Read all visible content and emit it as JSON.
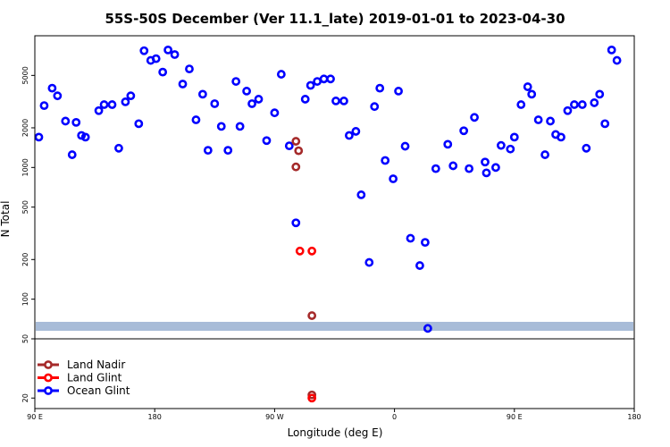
{
  "chart_data": {
    "type": "scatter",
    "title": "55S-50S December (Ver 11.1_late)   2019-01-01 to 2023-04-30",
    "xlabel": "Longitude (deg E)",
    "ylabel": "N Total",
    "y_scale": "log",
    "x_ticks": [
      {
        "value": 90,
        "label": "90 E"
      },
      {
        "value": 180,
        "label": "180"
      },
      {
        "value": 270,
        "label": "90 W"
      },
      {
        "value": 360,
        "label": "0"
      },
      {
        "value": 450,
        "label": "90 E"
      },
      {
        "value": 540,
        "label": "180"
      }
    ],
    "xlim": [
      90,
      540
    ],
    "upper_panel": {
      "ylim": [
        50,
        10000
      ],
      "y_ticks": [
        {
          "value": 50,
          "label": "50"
        },
        {
          "value": 100,
          "label": "100"
        },
        {
          "value": 200,
          "label": "200"
        },
        {
          "value": 500,
          "label": "500"
        },
        {
          "value": 1000,
          "label": "1000"
        },
        {
          "value": 2000,
          "label": "2000"
        },
        {
          "value": 5000,
          "label": "5000"
        }
      ]
    },
    "lower_panel": {
      "ylim": [
        17,
        50
      ],
      "y_ticks": [
        {
          "value": 20,
          "label": "20"
        }
      ]
    },
    "band_color": "#a8bcd8",
    "legend_position": "bottom-left",
    "series": [
      {
        "name": "Land Nadir",
        "color": "#a52a2a",
        "points": [
          [
            286,
            1580
          ],
          [
            286,
            1010
          ],
          [
            288,
            1340
          ],
          [
            298,
            75
          ],
          [
            298,
            21
          ]
        ]
      },
      {
        "name": "Land Glint",
        "color": "#ff0000",
        "points": [
          [
            289,
            232
          ],
          [
            298,
            232
          ],
          [
            298,
            20
          ]
        ]
      },
      {
        "name": "Ocean Glint",
        "color": "#0000ff",
        "points": [
          [
            93,
            1700
          ],
          [
            97,
            2950
          ],
          [
            103,
            4000
          ],
          [
            107,
            3500
          ],
          [
            113,
            2250
          ],
          [
            118,
            1250
          ],
          [
            121,
            2200
          ],
          [
            125,
            1750
          ],
          [
            128,
            1700
          ],
          [
            138,
            2700
          ],
          [
            142,
            3000
          ],
          [
            148,
            3000
          ],
          [
            153,
            1400
          ],
          [
            158,
            3150
          ],
          [
            162,
            3500
          ],
          [
            168,
            2150
          ],
          [
            172,
            7700
          ],
          [
            177,
            6500
          ],
          [
            181,
            6700
          ],
          [
            186,
            5300
          ],
          [
            190,
            7800
          ],
          [
            195,
            7200
          ],
          [
            201,
            4300
          ],
          [
            206,
            5600
          ],
          [
            211,
            2300
          ],
          [
            216,
            3600
          ],
          [
            220,
            1350
          ],
          [
            225,
            3050
          ],
          [
            230,
            2050
          ],
          [
            235,
            1350
          ],
          [
            241,
            4500
          ],
          [
            244,
            2050
          ],
          [
            249,
            3800
          ],
          [
            253,
            3050
          ],
          [
            258,
            3300
          ],
          [
            264,
            1600
          ],
          [
            270,
            2600
          ],
          [
            275,
            5100
          ],
          [
            281,
            1460
          ],
          [
            286,
            380
          ],
          [
            293,
            3300
          ],
          [
            297,
            4200
          ],
          [
            302,
            4500
          ],
          [
            307,
            4700
          ],
          [
            312,
            4700
          ],
          [
            316,
            3200
          ],
          [
            322,
            3200
          ],
          [
            326,
            1750
          ],
          [
            331,
            1880
          ],
          [
            335,
            620
          ],
          [
            341,
            190
          ],
          [
            345,
            2900
          ],
          [
            349,
            4000
          ],
          [
            353,
            1130
          ],
          [
            359,
            820
          ],
          [
            363,
            3800
          ],
          [
            368,
            1450
          ],
          [
            372,
            290
          ],
          [
            379,
            180
          ],
          [
            383,
            270
          ],
          [
            385,
            60
          ],
          [
            391,
            980
          ],
          [
            400,
            1500
          ],
          [
            404,
            1030
          ],
          [
            412,
            1900
          ],
          [
            416,
            980
          ],
          [
            420,
            2400
          ],
          [
            428,
            1100
          ],
          [
            429,
            910
          ],
          [
            436,
            1000
          ],
          [
            440,
            1470
          ],
          [
            447,
            1380
          ],
          [
            450,
            1700
          ],
          [
            455,
            3000
          ],
          [
            460,
            4100
          ],
          [
            463,
            3600
          ],
          [
            468,
            2300
          ],
          [
            473,
            1250
          ],
          [
            477,
            2250
          ],
          [
            481,
            1780
          ],
          [
            485,
            1700
          ],
          [
            490,
            2700
          ],
          [
            495,
            3000
          ],
          [
            501,
            3000
          ],
          [
            504,
            1400
          ],
          [
            510,
            3100
          ],
          [
            514,
            3600
          ],
          [
            518,
            2150
          ],
          [
            523,
            7800
          ],
          [
            527,
            6500
          ]
        ]
      }
    ]
  }
}
